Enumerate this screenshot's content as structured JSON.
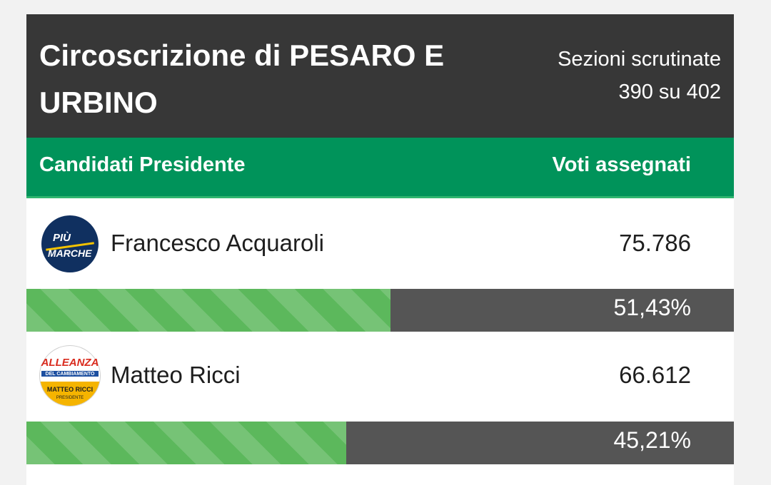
{
  "header": {
    "title": "Circoscrizione di PESARO E URBINO",
    "sections_line1": "Sezioni scrutinate",
    "sections_line2": "390 su 402"
  },
  "columns": {
    "left": "Candidati Presidente",
    "right": "Voti assegnati"
  },
  "candidates": [
    {
      "name": "Francesco Acquaroli",
      "votes": "75.786",
      "percent_label": "51,43%",
      "percent": 51.43,
      "logo": {
        "name": "piu-marche-logo",
        "line1": "PIÙ",
        "line2": "MARCHE",
        "bg_color": "#103060",
        "ring_color": "#ffffff",
        "stripe_color": "#f2c200"
      }
    },
    {
      "name": "Matteo Ricci",
      "votes": "66.612",
      "percent_label": "45,21%",
      "percent": 45.21,
      "logo": {
        "name": "alleanza-del-cambiamento-logo",
        "line1": "ALLEANZA",
        "line2": "DEL CAMBIAMENTO",
        "line3": "MATTEO RICCI",
        "line4": "PRESIDENTE",
        "top_color": "#ffffff",
        "bottom_color": "#f5b400",
        "text_color": "#d92b1e",
        "band_color": "#1d4fa0"
      }
    }
  ],
  "colors": {
    "header_bg": "#373737",
    "colhead_bg": "#00935a",
    "bar_fill": "#5cb85c",
    "bar_bg": "#555555"
  }
}
